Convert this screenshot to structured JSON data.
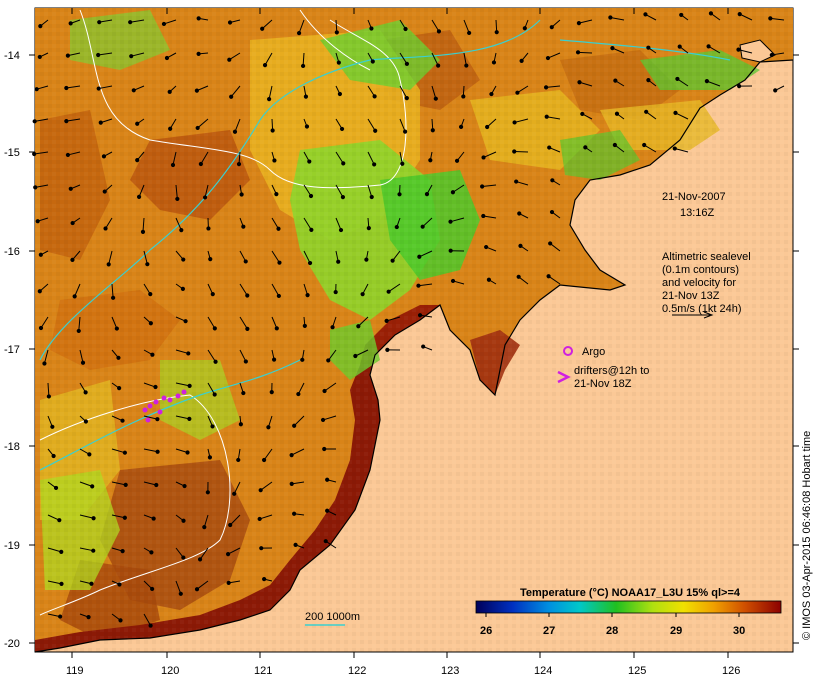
{
  "map": {
    "lon_ticks": [
      "119",
      "120",
      "121",
      "122",
      "123",
      "124",
      "125",
      "126"
    ],
    "lat_ticks": [
      "-14",
      "-15",
      "-16",
      "-17",
      "-18",
      "-19",
      "-20"
    ]
  },
  "annotation": {
    "date": "21-Nov-2007",
    "time": "13:16Z",
    "altimetry_lines": [
      "Altimetric sealevel",
      "(0.1m contours)",
      "and velocity for",
      "21-Nov 13Z",
      "0.5m/s (1kt 24h)"
    ]
  },
  "legend": {
    "argo": "Argo",
    "drifters_line1": "drifters@12h to",
    "drifters_line2": "21-Nov 18Z",
    "depth_label": "200  1000m"
  },
  "colorbar": {
    "title": "Temperature (°C) NOAA17_L3U 15% ql>=4",
    "ticks": [
      "26",
      "27",
      "28",
      "29",
      "30"
    ]
  },
  "credit": "© IMOS 03-Apr-2015 06:46:08 Hobart time",
  "colors": {
    "land": "#fbc896",
    "warm": "#8c1a06",
    "mid": "#d07818",
    "cool": "#e8b020",
    "green": "#4cc82a",
    "contour_200m": "#3ad0d0",
    "argo": "#d020e0"
  }
}
